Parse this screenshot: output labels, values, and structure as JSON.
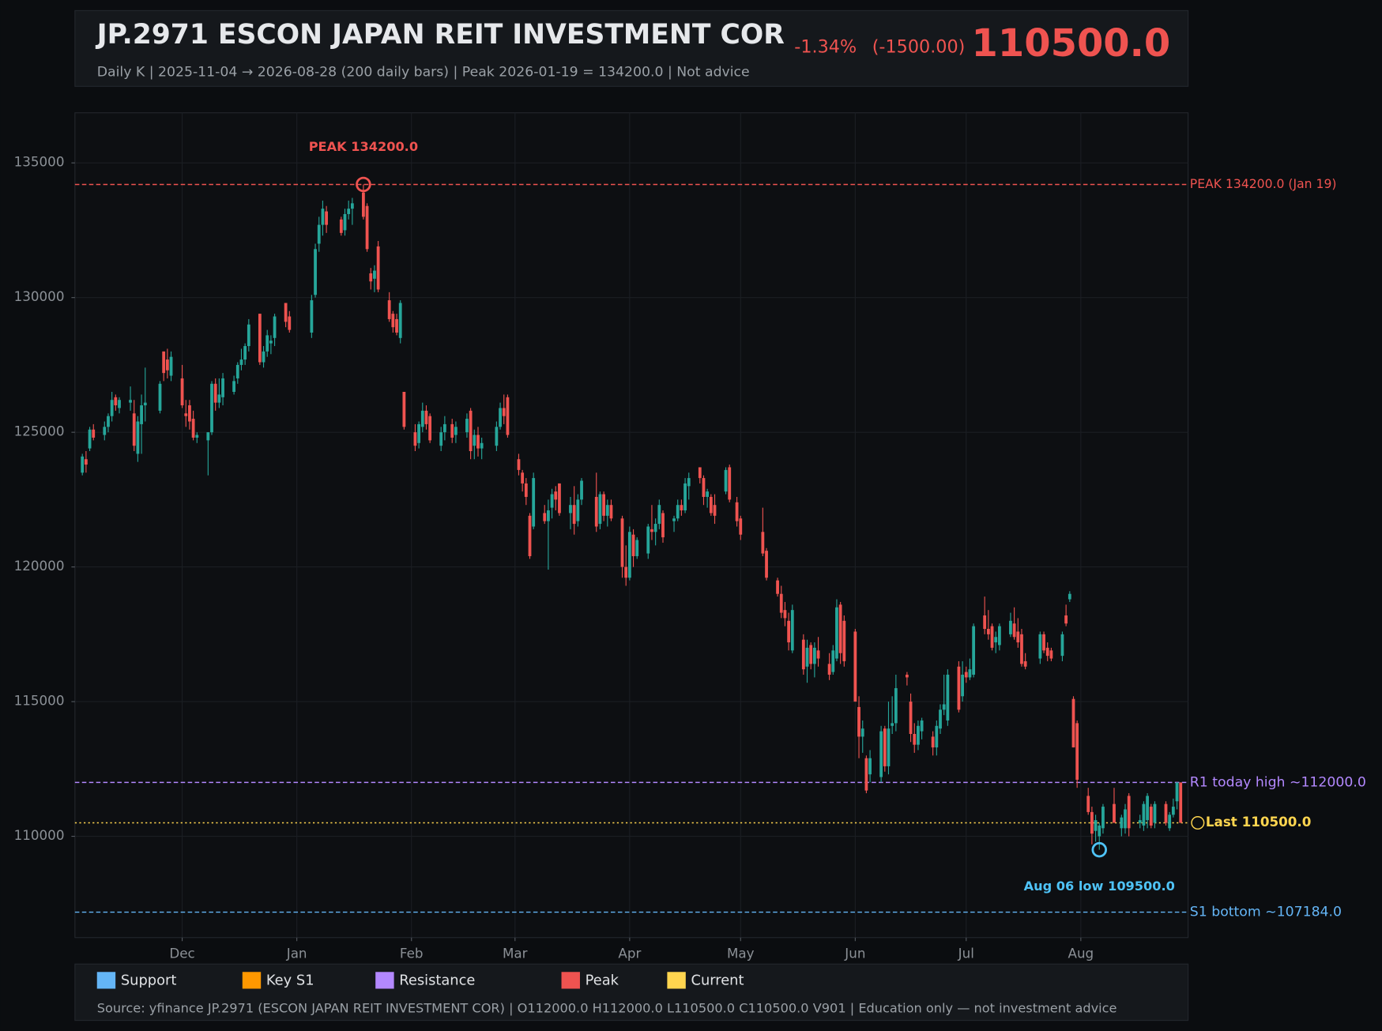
{
  "chart_data": {
    "type": "candlestick",
    "title": "JP.2971  ESCON JAPAN REIT INVESTMENT COR",
    "change_pct": "-1.34%",
    "change_abs": "(-1500.00)",
    "last_price": "110500.0",
    "subtitle": "Daily K  |  2025-11-04 → 2026-08-28 (200 daily bars)  |  Peak 2026-01-19 = 134200.0  |  Not advice",
    "footer": "Source: yfinance JP.2971 (ESCON JAPAN REIT INVESTMENT COR)  |  O112000.0  H112000.0  L110500.0  C110500.0  V901  |  Education only — not investment advice",
    "up_color": "#26a69a",
    "down_color": "#ef5350",
    "grid": true,
    "xlim": [
      "2025-11-02",
      "2026-08-30"
    ],
    "xticks": [
      {
        "value": "2025-12-01",
        "label": "Dec"
      },
      {
        "value": "2026-01-01",
        "label": "Jan"
      },
      {
        "value": "2026-02-01",
        "label": "Feb"
      },
      {
        "value": "2026-03-01",
        "label": "Mar"
      },
      {
        "value": "2026-04-01",
        "label": "Apr"
      },
      {
        "value": "2026-05-01",
        "label": "May"
      },
      {
        "value": "2026-06-01",
        "label": "Jun"
      },
      {
        "value": "2026-07-01",
        "label": "Jul"
      },
      {
        "value": "2026-08-01",
        "label": "Aug"
      }
    ],
    "ylim": [
      106240,
      136860
    ],
    "yticks": [
      110000,
      115000,
      120000,
      125000,
      130000,
      135000
    ],
    "x": [
      "2025-11-04",
      "2025-11-05",
      "2025-11-06",
      "2025-11-07",
      "2025-11-10",
      "2025-11-11",
      "2025-11-12",
      "2025-11-13",
      "2025-11-14",
      "2025-11-17",
      "2025-11-18",
      "2025-11-19",
      "2025-11-20",
      "2025-11-21",
      "2025-11-25",
      "2025-11-26",
      "2025-11-27",
      "2025-11-28",
      "2025-12-01",
      "2025-12-02",
      "2025-12-03",
      "2025-12-04",
      "2025-12-05",
      "2025-12-08",
      "2025-12-09",
      "2025-12-10",
      "2025-12-11",
      "2025-12-12",
      "2025-12-15",
      "2025-12-16",
      "2025-12-17",
      "2025-12-18",
      "2025-12-19",
      "2025-12-22",
      "2025-12-23",
      "2025-12-24",
      "2025-12-25",
      "2025-12-26",
      "2025-12-29",
      "2025-12-30",
      "2026-01-05",
      "2026-01-06",
      "2026-01-07",
      "2026-01-08",
      "2026-01-09",
      "2026-01-13",
      "2026-01-14",
      "2026-01-15",
      "2026-01-16",
      "2026-01-19",
      "2026-01-20",
      "2026-01-21",
      "2026-01-22",
      "2026-01-23",
      "2026-01-26",
      "2026-01-27",
      "2026-01-28",
      "2026-01-29",
      "2026-01-30",
      "2026-02-02",
      "2026-02-03",
      "2026-02-04",
      "2026-02-05",
      "2026-02-06",
      "2026-02-09",
      "2026-02-10",
      "2026-02-12",
      "2026-02-13",
      "2026-02-16",
      "2026-02-17",
      "2026-02-18",
      "2026-02-19",
      "2026-02-20",
      "2026-02-24",
      "2026-02-25",
      "2026-02-26",
      "2026-02-27",
      "2026-03-02",
      "2026-03-03",
      "2026-03-04",
      "2026-03-05",
      "2026-03-06",
      "2026-03-09",
      "2026-03-10",
      "2026-03-11",
      "2026-03-12",
      "2026-03-13",
      "2026-03-16",
      "2026-03-17",
      "2026-03-18",
      "2026-03-19",
      "2026-03-23",
      "2026-03-24",
      "2026-03-25",
      "2026-03-26",
      "2026-03-27",
      "2026-03-30",
      "2026-03-31",
      "2026-04-01",
      "2026-04-02",
      "2026-04-03",
      "2026-04-06",
      "2026-04-07",
      "2026-04-08",
      "2026-04-09",
      "2026-04-10",
      "2026-04-13",
      "2026-04-14",
      "2026-04-15",
      "2026-04-16",
      "2026-04-17",
      "2026-04-20",
      "2026-04-21",
      "2026-04-22",
      "2026-04-23",
      "2026-04-24",
      "2026-04-27",
      "2026-04-28",
      "2026-04-30",
      "2026-05-01",
      "2026-05-07",
      "2026-05-08",
      "2026-05-11",
      "2026-05-12",
      "2026-05-13",
      "2026-05-14",
      "2026-05-15",
      "2026-05-18",
      "2026-05-19",
      "2026-05-20",
      "2026-05-21",
      "2026-05-22",
      "2026-05-25",
      "2026-05-26",
      "2026-05-27",
      "2026-05-28",
      "2026-05-29",
      "2026-06-01",
      "2026-06-02",
      "2026-06-03",
      "2026-06-04",
      "2026-06-05",
      "2026-06-08",
      "2026-06-09",
      "2026-06-10",
      "2026-06-11",
      "2026-06-12",
      "2026-06-15",
      "2026-06-16",
      "2026-06-17",
      "2026-06-18",
      "2026-06-19",
      "2026-06-22",
      "2026-06-23",
      "2026-06-24",
      "2026-06-25",
      "2026-06-26",
      "2026-06-29",
      "2026-06-30",
      "2026-07-01",
      "2026-07-02",
      "2026-07-03",
      "2026-07-06",
      "2026-07-07",
      "2026-07-08",
      "2026-07-09",
      "2026-07-10",
      "2026-07-13",
      "2026-07-14",
      "2026-07-15",
      "2026-07-16",
      "2026-07-17",
      "2026-07-21",
      "2026-07-22",
      "2026-07-23",
      "2026-07-24",
      "2026-07-27",
      "2026-07-28",
      "2026-07-29",
      "2026-07-30",
      "2026-07-31",
      "2026-08-03",
      "2026-08-04",
      "2026-08-05",
      "2026-08-06",
      "2026-08-07",
      "2026-08-10",
      "2026-08-12",
      "2026-08-13",
      "2026-08-14",
      "2026-08-17",
      "2026-08-18",
      "2026-08-19",
      "2026-08-20",
      "2026-08-21",
      "2026-08-24",
      "2026-08-25",
      "2026-08-26",
      "2026-08-27",
      "2026-08-28"
    ],
    "open": [
      123500,
      124000,
      124400,
      125100,
      124900,
      125200,
      125600,
      126300,
      125900,
      126100,
      125700,
      124200,
      125300,
      126000,
      125800,
      128000,
      127700,
      127100,
      127000,
      125700,
      126000,
      125500,
      124800,
      124700,
      125000,
      126800,
      126100,
      126300,
      126500,
      127000,
      127500,
      127700,
      128200,
      129400,
      127600,
      128000,
      128300,
      128500,
      129800,
      129300,
      128700,
      130100,
      132000,
      132700,
      133200,
      132900,
      132500,
      133100,
      133300,
      133900,
      133400,
      130900,
      130700,
      131900,
      129900,
      129400,
      129200,
      128500,
      126500,
      125000,
      124600,
      125200,
      125800,
      125600,
      124500,
      125000,
      125300,
      124900,
      125000,
      125800,
      124500,
      124900,
      124400,
      124500,
      125200,
      125900,
      126300,
      124000,
      123500,
      123100,
      121900,
      121500,
      122000,
      121700,
      122200,
      122800,
      123100,
      122000,
      122300,
      121700,
      122500,
      122600,
      121600,
      122700,
      121900,
      122300,
      121800,
      120000,
      119600,
      121200,
      120400,
      120500,
      121400,
      121300,
      121600,
      122000,
      121700,
      121800,
      122300,
      122100,
      123000,
      123700,
      123300,
      122600,
      122600,
      122300,
      122800,
      123700,
      122400,
      121800,
      121300,
      120600,
      119500,
      119000,
      118400,
      118000,
      116900,
      117300,
      116300,
      117100,
      116400,
      116900,
      116400,
      116100,
      116600,
      118600,
      118000,
      117600,
      114800,
      113700,
      112900,
      112300,
      112200,
      114000,
      112600,
      114100,
      114200,
      116000,
      115000,
      113800,
      113400,
      113900,
      113700,
      113300,
      114000,
      114700,
      114300,
      116300,
      115200,
      116100,
      115900,
      116000,
      118200,
      117700,
      117800,
      117200,
      117100,
      117500,
      117900,
      117600,
      117500,
      116500,
      116600,
      117500,
      117000,
      116900,
      116700,
      118200,
      118800,
      115100,
      114200,
      111500,
      110900,
      110200,
      110000,
      110300,
      111200,
      110300,
      110300,
      111500,
      110500,
      110400,
      110600,
      111100,
      110500,
      111200,
      110300,
      110800,
      111300,
      112000
    ],
    "high": [
      124200,
      124300,
      125200,
      125300,
      125400,
      125700,
      126500,
      126400,
      126300,
      126700,
      126200,
      125600,
      126400,
      127400,
      126900,
      128000,
      128100,
      128000,
      127500,
      126200,
      126200,
      125800,
      125000,
      125000,
      126900,
      127000,
      127000,
      127200,
      127100,
      127600,
      128100,
      128300,
      129200,
      129400,
      128200,
      128800,
      128600,
      129400,
      129800,
      129500,
      130100,
      132000,
      133000,
      133600,
      133400,
      133000,
      133300,
      133600,
      133700,
      134200,
      133500,
      131100,
      131200,
      132100,
      130200,
      129500,
      129400,
      129900,
      126500,
      125300,
      125400,
      126100,
      126000,
      125700,
      125200,
      125600,
      125500,
      125400,
      125700,
      125900,
      125100,
      125200,
      124800,
      125400,
      126100,
      126400,
      126400,
      124200,
      123600,
      123300,
      122000,
      123500,
      122300,
      122500,
      122900,
      123000,
      123100,
      122600,
      123000,
      122700,
      123300,
      123500,
      122800,
      122800,
      122500,
      122500,
      121900,
      120800,
      121500,
      121400,
      121100,
      121600,
      122300,
      121800,
      122500,
      122100,
      121900,
      122500,
      122500,
      123300,
      123500,
      123700,
      123400,
      122900,
      122700,
      122700,
      123700,
      123800,
      122600,
      121900,
      122200,
      120700,
      119600,
      119300,
      118700,
      118300,
      118600,
      117500,
      117300,
      117200,
      117200,
      117400,
      116800,
      117100,
      118800,
      118700,
      118200,
      117700,
      115200,
      114300,
      113000,
      113200,
      114100,
      114100,
      115000,
      115200,
      116000,
      116100,
      115300,
      114200,
      114300,
      114400,
      113900,
      114300,
      114900,
      116000,
      116200,
      116500,
      116500,
      116300,
      116600,
      117900,
      118900,
      118400,
      117900,
      117600,
      117900,
      118300,
      118500,
      118100,
      117700,
      116800,
      117600,
      117600,
      117200,
      117000,
      117600,
      118600,
      119100,
      115200,
      114300,
      111800,
      111100,
      110800,
      110500,
      111200,
      111800,
      110800,
      111200,
      111600,
      110800,
      111300,
      111600,
      111200,
      111300,
      111300,
      110900,
      111400,
      112000,
      112000
    ],
    "low": [
      123400,
      123500,
      124300,
      124700,
      124700,
      125000,
      125400,
      125800,
      125700,
      125800,
      124300,
      123900,
      124200,
      125400,
      125700,
      126900,
      127000,
      126900,
      125900,
      125200,
      125100,
      124700,
      124600,
      123400,
      124900,
      125800,
      125900,
      126000,
      126400,
      126800,
      127300,
      127500,
      128000,
      127500,
      127400,
      127800,
      127900,
      128200,
      128900,
      128700,
      128500,
      130000,
      131700,
      132300,
      132400,
      132300,
      132300,
      132900,
      132700,
      132900,
      131700,
      130300,
      130200,
      130200,
      129100,
      128700,
      128600,
      128300,
      125100,
      124300,
      124400,
      125000,
      125100,
      124600,
      124300,
      124700,
      124600,
      124600,
      124800,
      124000,
      124000,
      124100,
      124000,
      124300,
      125100,
      125300,
      124800,
      123400,
      122800,
      122300,
      120300,
      121400,
      121600,
      119900,
      121800,
      122100,
      121900,
      121400,
      121200,
      121500,
      122300,
      121300,
      121400,
      121700,
      121500,
      121700,
      119600,
      119300,
      119500,
      120000,
      120300,
      120300,
      121000,
      120800,
      121400,
      120900,
      121300,
      121700,
      121900,
      122000,
      122500,
      123100,
      122300,
      122200,
      121900,
      121600,
      122700,
      122400,
      121500,
      121000,
      120400,
      119500,
      118900,
      118100,
      117800,
      116900,
      116800,
      116000,
      115700,
      116200,
      115900,
      116300,
      115800,
      116000,
      116500,
      116400,
      116300,
      115000,
      112900,
      113100,
      111600,
      112000,
      112000,
      112400,
      112300,
      113800,
      113900,
      115600,
      113500,
      113100,
      113200,
      113600,
      113000,
      113000,
      113800,
      114500,
      114100,
      114600,
      115000,
      115700,
      115800,
      115900,
      117500,
      117300,
      116900,
      116800,
      116900,
      117400,
      117300,
      117000,
      116300,
      116200,
      116400,
      116800,
      116500,
      116500,
      116500,
      117800,
      118700,
      113300,
      111800,
      110800,
      109700,
      109800,
      109500,
      110100,
      110500,
      110000,
      110100,
      110000,
      110300,
      110200,
      110300,
      110300,
      110300,
      110400,
      110200,
      110700,
      111000,
      110500
    ],
    "close": [
      124100,
      123800,
      125100,
      124800,
      125200,
      125600,
      126200,
      126000,
      126200,
      126200,
      124500,
      125400,
      126000,
      126100,
      126800,
      127200,
      127300,
      127800,
      126000,
      125600,
      125400,
      124800,
      124900,
      125000,
      126800,
      126100,
      126400,
      127000,
      126900,
      127500,
      127700,
      128200,
      129000,
      127600,
      128000,
      128600,
      128400,
      129300,
      129100,
      128800,
      129900,
      131800,
      132700,
      133300,
      132700,
      132400,
      133100,
      133300,
      133500,
      133000,
      131800,
      130600,
      131000,
      130300,
      129200,
      128900,
      128700,
      129800,
      125200,
      124500,
      125300,
      125800,
      125300,
      124700,
      125000,
      125300,
      124800,
      125200,
      125500,
      124300,
      124900,
      124400,
      124600,
      125200,
      125900,
      125600,
      124900,
      123600,
      123100,
      122600,
      120400,
      123300,
      121700,
      122100,
      122700,
      122500,
      122000,
      122300,
      121600,
      122500,
      123200,
      121500,
      122700,
      121900,
      122300,
      121800,
      120000,
      119600,
      121300,
      120400,
      121000,
      121500,
      121300,
      121600,
      122300,
      121100,
      121800,
      122300,
      122100,
      123100,
      123300,
      123300,
      122600,
      122800,
      122000,
      121900,
      123600,
      122500,
      121700,
      121200,
      120500,
      119600,
      119000,
      118300,
      118100,
      117200,
      118400,
      116200,
      117000,
      116400,
      117000,
      116600,
      116000,
      116900,
      118500,
      116800,
      116500,
      115000,
      113700,
      114000,
      111700,
      112900,
      113900,
      112600,
      114000,
      114200,
      115500,
      115900,
      113800,
      113400,
      114100,
      114300,
      113300,
      114100,
      114700,
      114900,
      116000,
      114700,
      116000,
      115900,
      116200,
      117800,
      117700,
      117500,
      117000,
      117400,
      117800,
      118000,
      117400,
      117200,
      116400,
      116300,
      117500,
      116900,
      116700,
      116600,
      117500,
      117900,
      119000,
      113300,
      112100,
      110900,
      110100,
      110600,
      110400,
      111100,
      110500,
      110700,
      111000,
      110300,
      110600,
      111200,
      111500,
      110400,
      111200,
      110500,
      110800,
      111100,
      112000,
      110500
    ],
    "reference_lines": [
      {
        "label": "PEAK 134200.0 (Jan 19)",
        "value": 134200,
        "color": "#ef5350",
        "style": "dashed"
      },
      {
        "label": "R1 today high ~112000.0",
        "value": 112000,
        "color": "#b388ff",
        "style": "dashed"
      },
      {
        "label": "Last 110500.0",
        "value": 110500,
        "color": "#ffd54f",
        "style": "dotted"
      },
      {
        "label": "S1 bottom ~107184.0",
        "value": 107184,
        "color": "#64b5f6",
        "style": "dashed"
      }
    ],
    "annotations": [
      {
        "text": "PEAK 134200.0",
        "x": "2026-01-19",
        "value": 134200,
        "color": "#ef5350",
        "placement": "above"
      },
      {
        "text": "Aug 06 low 109500.0",
        "x": "2026-08-06",
        "value": 109500,
        "color": "#4fc3f7",
        "placement": "below"
      }
    ],
    "legend": [
      {
        "name": "Support",
        "color": "#64b5f6"
      },
      {
        "name": "Key S1",
        "color": "#ff9800"
      },
      {
        "name": "Resistance",
        "color": "#b388ff"
      },
      {
        "name": "Peak",
        "color": "#ef5350"
      },
      {
        "name": "Current",
        "color": "#ffd54f"
      }
    ]
  }
}
